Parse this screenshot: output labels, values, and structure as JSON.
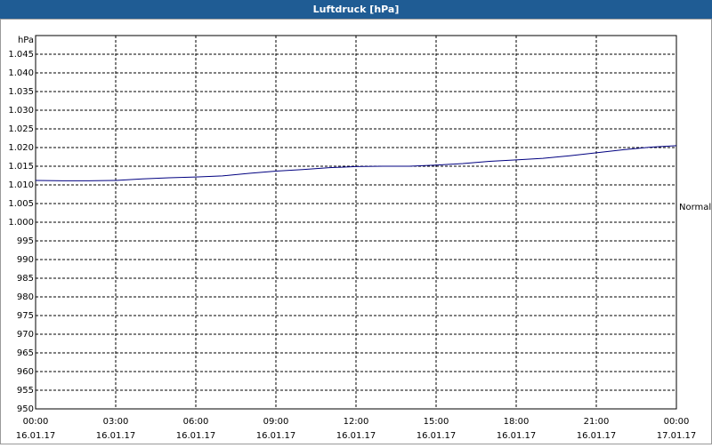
{
  "chart_data": {
    "type": "line",
    "title": "Luftdruck [hPa]",
    "y_unit": "hPa",
    "annotation": "Normal",
    "x": [
      0,
      1,
      2,
      3,
      4,
      5,
      6,
      7,
      8,
      9,
      10,
      11,
      12,
      13,
      14,
      15,
      16,
      17,
      18,
      19,
      20,
      21,
      22,
      23,
      24
    ],
    "series": [
      {
        "name": "Luftdruck",
        "color": "#000080",
        "values": [
          1011.2,
          1011.1,
          1011.1,
          1011.2,
          1011.6,
          1011.9,
          1012.1,
          1012.4,
          1013.1,
          1013.7,
          1014.1,
          1014.6,
          1014.9,
          1015.0,
          1015.0,
          1015.3,
          1015.7,
          1016.3,
          1016.7,
          1017.1,
          1017.8,
          1018.6,
          1019.4,
          1020.1,
          1020.5
        ]
      }
    ],
    "xlim": [
      0,
      24
    ],
    "xticks": [
      {
        "value": 0,
        "label": "00:00",
        "date": "16.01.17"
      },
      {
        "value": 3,
        "label": "03:00",
        "date": "16.01.17"
      },
      {
        "value": 6,
        "label": "06:00",
        "date": "16.01.17"
      },
      {
        "value": 9,
        "label": "09:00",
        "date": "16.01.17"
      },
      {
        "value": 12,
        "label": "12:00",
        "date": "16.01.17"
      },
      {
        "value": 15,
        "label": "15:00",
        "date": "16.01.17"
      },
      {
        "value": 18,
        "label": "18:00",
        "date": "16.01.17"
      },
      {
        "value": 21,
        "label": "21:00",
        "date": "16.01.17"
      },
      {
        "value": 24,
        "label": "00:00",
        "date": "17.01.17"
      }
    ],
    "ylim": [
      950,
      1050
    ],
    "yticks": [
      950,
      955,
      960,
      965,
      970,
      975,
      980,
      985,
      990,
      995,
      {
        "value": 1000,
        "label": "1.000"
      },
      {
        "value": 1005,
        "label": "1.005"
      },
      {
        "value": 1010,
        "label": "1.010"
      },
      {
        "value": 1015,
        "label": "1.015"
      },
      {
        "value": 1020,
        "label": "1.020"
      },
      {
        "value": 1025,
        "label": "1.025"
      },
      {
        "value": 1030,
        "label": "1.030"
      },
      {
        "value": 1035,
        "label": "1.035"
      },
      {
        "value": 1040,
        "label": "1.040"
      },
      {
        "value": 1045,
        "label": "1.045"
      }
    ],
    "grid": true
  }
}
